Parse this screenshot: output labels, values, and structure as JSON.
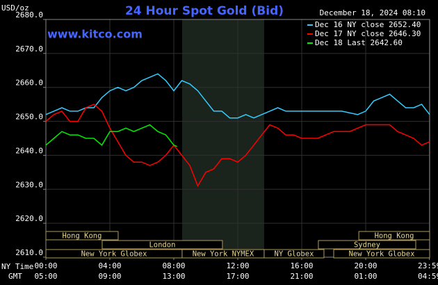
{
  "chart_data": {
    "type": "line",
    "title": "24 Hour Spot Gold (Bid)",
    "site": "www.kitco.com",
    "timestamp": "December 18, 2024 08:10",
    "y_label": "USD/oz",
    "x_row_labels": [
      "NY Time",
      "GMT"
    ],
    "xlim": [
      0,
      24
    ],
    "xticks": [
      {
        "value": 0,
        "label": "00:00"
      },
      {
        "value": 4,
        "label": "04:00"
      },
      {
        "value": 8,
        "label": "08:00"
      },
      {
        "value": 12,
        "label": "12:00"
      },
      {
        "value": 16,
        "label": "16:00"
      },
      {
        "value": 20,
        "label": "20:00"
      },
      {
        "value": 23.983,
        "label": "23:59"
      }
    ],
    "gmt_labels": [
      "05:00",
      "09:00",
      "13:00",
      "17:00",
      "21:00",
      "01:00",
      "04:59"
    ],
    "ylim": [
      2610,
      2680
    ],
    "yticks": [
      {
        "value": 2610,
        "label": "2610.0"
      },
      {
        "value": 2620,
        "label": "2620.0"
      },
      {
        "value": 2630,
        "label": "2630.0"
      },
      {
        "value": 2640,
        "label": "2640.0"
      },
      {
        "value": 2650,
        "label": "2650.0"
      },
      {
        "value": 2660,
        "label": "2660.0"
      },
      {
        "value": 2670,
        "label": "2670.0"
      },
      {
        "value": 2680,
        "label": "2680.0"
      }
    ],
    "grid": true,
    "series": [
      {
        "name": "Dec 16 NY close 2652.40",
        "color": "#33ccff",
        "x": [
          0,
          0.5,
          1,
          1.5,
          2,
          2.5,
          3,
          3.5,
          4,
          4.5,
          5,
          5.5,
          6,
          6.5,
          7,
          7.5,
          8,
          8.5,
          9,
          9.5,
          10,
          10.5,
          11,
          11.5,
          12,
          12.5,
          13,
          13.5,
          14,
          14.5,
          15,
          15.5,
          16,
          16.5,
          17,
          17.5,
          18,
          18.5,
          19,
          19.5,
          20,
          20.5,
          21,
          21.5,
          22,
          22.5,
          23,
          23.5,
          24
        ],
        "values": [
          2652,
          2653,
          2654,
          2653,
          2653,
          2654,
          2654,
          2657,
          2659,
          2660,
          2659,
          2660,
          2662,
          2663,
          2664,
          2662,
          2659,
          2662,
          2661,
          2659,
          2656,
          2653,
          2653,
          2651,
          2651,
          2652,
          2651,
          2652,
          2653,
          2654,
          2653,
          2653,
          2653,
          2653,
          2653,
          2653,
          2653,
          2653,
          2652.5,
          2652,
          2653,
          2656,
          2657,
          2658,
          2656,
          2654,
          2654,
          2655,
          2652
        ]
      },
      {
        "name": "Dec 17 NY close 2646.30",
        "color": "#ff0000",
        "x": [
          0,
          0.5,
          1,
          1.5,
          2,
          2.5,
          3,
          3.5,
          4,
          4.5,
          5,
          5.5,
          6,
          6.5,
          7,
          7.5,
          8,
          8.5,
          9,
          9.5,
          10,
          10.5,
          11,
          11.5,
          12,
          12.5,
          13,
          13.5,
          14,
          14.5,
          15,
          15.5,
          16,
          16.5,
          17,
          17.5,
          18,
          18.5,
          19,
          19.5,
          20,
          20.5,
          21,
          21.5,
          22,
          22.5,
          23,
          23.5,
          24
        ],
        "values": [
          2650,
          2652,
          2653,
          2650,
          2650,
          2654,
          2655,
          2653,
          2648,
          2644,
          2640,
          2638,
          2638,
          2637,
          2638,
          2640,
          2643,
          2640,
          2637,
          2631,
          2635,
          2636,
          2639,
          2639,
          2638,
          2640,
          2643,
          2646,
          2649,
          2648,
          2646,
          2646,
          2645,
          2645,
          2645,
          2646,
          2647,
          2647,
          2647,
          2648,
          2649,
          2649,
          2649,
          2649,
          2647,
          2646,
          2645,
          2643,
          2644
        ]
      },
      {
        "name": "Dec 18 Last 2642.60",
        "color": "#00ee00",
        "x": [
          0,
          0.5,
          1,
          1.5,
          2,
          2.5,
          3,
          3.5,
          4,
          4.5,
          5,
          5.5,
          6,
          6.5,
          7,
          7.5,
          8,
          8.2
        ],
        "values": [
          2643,
          2645,
          2647,
          2646,
          2646,
          2645,
          2645,
          2643,
          2647,
          2647,
          2648,
          2647,
          2648,
          2649,
          2647,
          2646,
          2643,
          2642.6
        ]
      }
    ],
    "sessions": [
      {
        "label": "Hong Kong",
        "row": 0,
        "start": 0,
        "end": 4.52
      },
      {
        "label": "Hong Kong",
        "row": 0,
        "start": 19.57,
        "end": 24
      },
      {
        "label": "London",
        "row": 1,
        "start": 3.52,
        "end": 11.04
      },
      {
        "label": "Sydney",
        "row": 1,
        "start": 17.04,
        "end": 23.13
      },
      {
        "label": "New York Globex",
        "row": 2,
        "start": 0,
        "end": 8.52
      },
      {
        "label": "New York NYMEX",
        "row": 2,
        "start": 8.52,
        "end": 13.65,
        "shaded": true
      },
      {
        "label": "NY Globex",
        "row": 2,
        "start": 13.65,
        "end": 17.39
      },
      {
        "label": "New York Globex",
        "row": 2,
        "start": 18,
        "end": 24
      }
    ]
  }
}
